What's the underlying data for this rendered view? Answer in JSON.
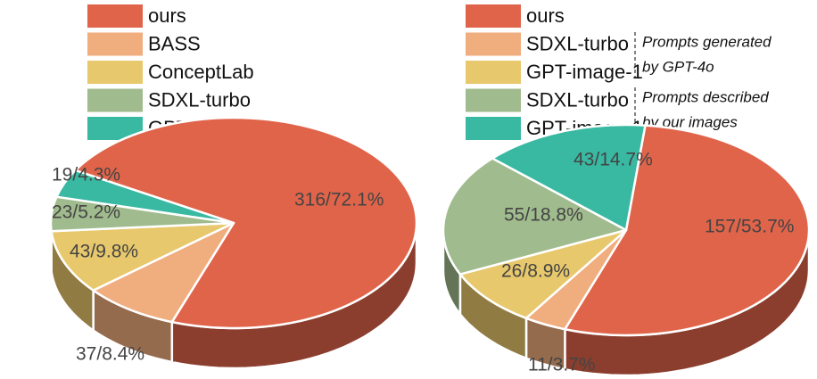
{
  "chart_data": [
    {
      "type": "pie",
      "categories": [
        "ours",
        "BASS",
        "ConceptLab",
        "SDXL-turbo",
        "GPT-image-1"
      ],
      "values": [
        316,
        37,
        43,
        23,
        19
      ],
      "value_labels": [
        "316/72.1%",
        "37/8.4%",
        "43/9.8%",
        "23/5.2%",
        "19/4.3%"
      ],
      "colors": [
        "#e0644a",
        "#f0ad7e",
        "#e8c86c",
        "#a0bb8d",
        "#39b9a2"
      ]
    },
    {
      "type": "pie",
      "categories": [
        "ours",
        "SDXL-turbo",
        "GPT-image-1",
        "SDXL-turbo",
        "GPT-image-1"
      ],
      "values": [
        157,
        11,
        26,
        55,
        43
      ],
      "value_labels": [
        "157/53.7%",
        "11/3.7%",
        "26/8.9%",
        "55/18.8%",
        "43/14.7%"
      ],
      "colors": [
        "#e0644a",
        "#f0ad7e",
        "#e8c86c",
        "#a0bb8d",
        "#39b9a2"
      ],
      "annotations": [
        "Prompts generated",
        "by GPT-4o",
        "Prompts described",
        "by our images"
      ]
    }
  ]
}
